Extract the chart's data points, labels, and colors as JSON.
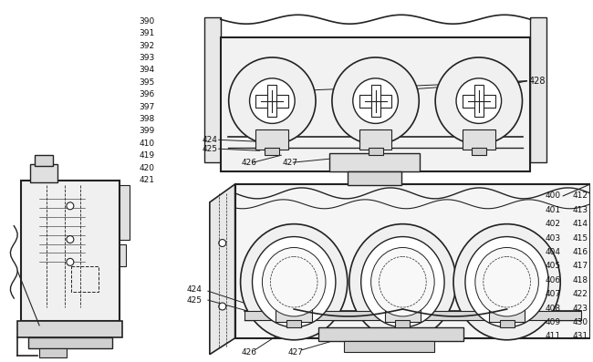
{
  "bg_color": "#ffffff",
  "line_color": "#222222",
  "text_color": "#111111",
  "fig_width": 6.5,
  "fig_height": 3.97,
  "left_labels": [
    "390",
    "391",
    "392",
    "393",
    "394",
    "395",
    "396",
    "397",
    "398",
    "399",
    "410",
    "419",
    "420",
    "421"
  ],
  "right_labels_col1": [
    "400",
    "401",
    "402",
    "403",
    "404",
    "405",
    "406",
    "407",
    "408",
    "409",
    "411"
  ],
  "right_labels_col2": [
    "412",
    "413",
    "414",
    "415",
    "416",
    "417",
    "418",
    "422",
    "423",
    "430",
    "431"
  ],
  "font_size": 6.5
}
